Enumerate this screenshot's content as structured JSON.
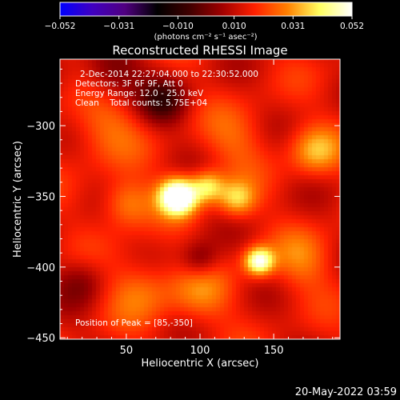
{
  "colorbar": {
    "min": -0.052,
    "max": 0.052,
    "tick_labels": [
      "−0.052",
      "−0.031",
      "−0.010",
      "0.010",
      "0.031",
      "0.052"
    ],
    "tick_values": [
      -0.052,
      -0.031,
      -0.01,
      0.01,
      0.031,
      0.052
    ],
    "units_label": "(photons cm⁻² s⁻¹ asec⁻²)",
    "colormap": [
      "#0000ff",
      "#4000c0",
      "#500080",
      "#000000",
      "#400000",
      "#a00000",
      "#ff2000",
      "#ff8000",
      "#ffff60",
      "#ffffff"
    ]
  },
  "chart_data": {
    "type": "heatmap",
    "title": "Reconstructed RHESSI Image",
    "xlabel": "Heliocentric X (arcsec)",
    "ylabel": "Heliocentric Y (arcsec)",
    "xlim": [
      5,
      195
    ],
    "ylim": [
      -451,
      -253
    ],
    "x_ticks": [
      50,
      100,
      150
    ],
    "y_ticks": [
      -300,
      -350,
      -400,
      -450
    ],
    "x_tick_labels": [
      "50",
      "100",
      "150"
    ],
    "y_tick_labels": [
      "−300",
      "−350",
      "−400",
      "−450"
    ],
    "value_range": [
      -0.052,
      0.052
    ],
    "sources": [
      {
        "x": 85,
        "y": -350,
        "peak": 0.052,
        "sigma": 9
      },
      {
        "x": 140,
        "y": -396,
        "peak": 0.038,
        "sigma": 7
      },
      {
        "x": 105,
        "y": -343,
        "peak": 0.025,
        "sigma": 8
      },
      {
        "x": 125,
        "y": -352,
        "peak": 0.022,
        "sigma": 9
      },
      {
        "x": 178,
        "y": -318,
        "peak": 0.018,
        "sigma": 12
      },
      {
        "x": 50,
        "y": -355,
        "peak": 0.017,
        "sigma": 12
      },
      {
        "x": 35,
        "y": -300,
        "peak": 0.012,
        "sigma": 18
      },
      {
        "x": 60,
        "y": -415,
        "peak": 0.013,
        "sigma": 16
      },
      {
        "x": 170,
        "y": -395,
        "peak": 0.012,
        "sigma": 15
      },
      {
        "x": 100,
        "y": -420,
        "peak": 0.012,
        "sigma": 15
      },
      {
        "x": 125,
        "y": -310,
        "peak": 0.01,
        "sigma": 16
      }
    ],
    "background_level": 0.014,
    "dim_regions": [
      {
        "x": 40,
        "y": -265,
        "depth": 0.015,
        "sigma": 14
      },
      {
        "x": 75,
        "y": -282,
        "depth": 0.018,
        "sigma": 12
      },
      {
        "x": 100,
        "y": -395,
        "depth": 0.014,
        "sigma": 9
      },
      {
        "x": 20,
        "y": -410,
        "depth": 0.01,
        "sigma": 12
      }
    ],
    "annotations": {
      "time_range": "2-Dec-2014 22:27:04.000 to 22:30:52.000",
      "detectors": "Detectors: 3F 6F 9F, Att 0",
      "energy_range": "Energy Range: 12.0 - 25.0 keV",
      "clean": "Clean    Total counts: 5.75E+04",
      "peak_position": "Position of Peak = [85,-350]"
    },
    "peak": {
      "x": 85,
      "y": -350
    }
  },
  "footer": {
    "date": "20-May-2022 03:59"
  }
}
